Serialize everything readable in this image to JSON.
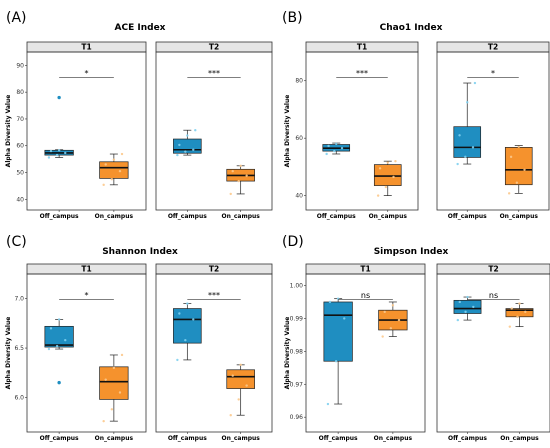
{
  "colors": {
    "off_campus": "#1f8ec1",
    "on_campus": "#f5922d",
    "strip_bg": "#e6e6e6",
    "frame": "#333333"
  },
  "chart_data": [
    {
      "type": "box",
      "panel_label": "(A)",
      "title": "ACE Index",
      "ylabel": "Alpha Diversity Value",
      "ylim": [
        36,
        95
      ],
      "yticks": [
        40,
        50,
        60,
        70,
        80,
        90
      ],
      "facets": [
        {
          "name": "T1",
          "groups": [
            {
              "name": "Off_campus",
              "q1": 56.5,
              "median": 57.3,
              "q3": 58.3,
              "whisker_low": 55.6,
              "whisker_high": 58.5,
              "outliers": [
                78.0
              ],
              "points": [
                55.6,
                56.5,
                57.3,
                58.0,
                58.3
              ]
            },
            {
              "name": "On_campus",
              "q1": 47.8,
              "median": 51.8,
              "q3": 54.0,
              "whisker_low": 45.4,
              "whisker_high": 56.9,
              "outliers": [],
              "points": [
                45.4,
                47.5,
                50.5,
                53.0,
                54.8,
                56.9
              ]
            }
          ],
          "significance": "*"
        },
        {
          "name": "T2",
          "groups": [
            {
              "name": "Off_campus",
              "q1": 57.2,
              "median": 58.5,
              "q3": 62.5,
              "whisker_low": 56.5,
              "whisker_high": 65.8,
              "outliers": [],
              "points": [
                56.5,
                57.8,
                58.5,
                60.3,
                63.8,
                65.8
              ]
            },
            {
              "name": "On_campus",
              "q1": 46.8,
              "median": 48.9,
              "q3": 51.2,
              "whisker_low": 42.0,
              "whisker_high": 52.5,
              "outliers": [],
              "points": [
                42.0,
                46.8,
                48.8,
                50.5,
                52.5
              ]
            }
          ],
          "significance": "***"
        }
      ]
    },
    {
      "type": "box",
      "panel_label": "(B)",
      "title": "Chao1 Index",
      "ylabel": "Alpha Diversity Value",
      "ylim": [
        35,
        90
      ],
      "yticks": [
        40,
        60,
        80
      ],
      "facets": [
        {
          "name": "T1",
          "groups": [
            {
              "name": "Off_campus",
              "q1": 55.5,
              "median": 56.5,
              "q3": 57.8,
              "whisker_low": 54.5,
              "whisker_high": 58.3,
              "outliers": [],
              "points": [
                54.5,
                55.5,
                56.5,
                57.3,
                58.0
              ]
            },
            {
              "name": "On_campus",
              "q1": 43.5,
              "median": 46.8,
              "q3": 50.8,
              "whisker_low": 40.0,
              "whisker_high": 52.0,
              "outliers": [],
              "points": [
                40.0,
                43.0,
                46.5,
                49.5,
                51.5,
                52.0
              ]
            }
          ],
          "significance": "***"
        },
        {
          "name": "T2",
          "groups": [
            {
              "name": "Off_campus",
              "q1": 53.3,
              "median": 56.8,
              "q3": 64.0,
              "whisker_low": 51.0,
              "whisker_high": 79.2,
              "outliers": [],
              "points": [
                51.0,
                53.5,
                56.8,
                61.0,
                72.5,
                79.2
              ]
            },
            {
              "name": "On_campus",
              "q1": 43.8,
              "median": 49.0,
              "q3": 56.8,
              "whisker_low": 40.8,
              "whisker_high": 57.5,
              "outliers": [],
              "points": [
                40.8,
                44.5,
                49.0,
                53.5,
                57.0
              ]
            }
          ],
          "significance": "*"
        }
      ]
    },
    {
      "type": "box",
      "panel_label": "(C)",
      "title": "Shannon Index",
      "ylabel": "Alpha Diversity Value",
      "ylim": [
        5.65,
        7.25
      ],
      "yticks": [
        6.0,
        6.5,
        7.0
      ],
      "facets": [
        {
          "name": "T1",
          "groups": [
            {
              "name": "Off_campus",
              "q1": 6.51,
              "median": 6.53,
              "q3": 6.72,
              "whisker_low": 6.49,
              "whisker_high": 6.79,
              "outliers": [
                6.15
              ],
              "points": [
                6.49,
                6.52,
                6.58,
                6.7,
                6.79
              ]
            },
            {
              "name": "On_campus",
              "q1": 5.98,
              "median": 6.16,
              "q3": 6.31,
              "whisker_low": 5.76,
              "whisker_high": 6.43,
              "outliers": [],
              "points": [
                5.76,
                5.88,
                6.05,
                6.18,
                6.3,
                6.43
              ]
            }
          ],
          "significance": "*"
        },
        {
          "name": "T2",
          "groups": [
            {
              "name": "Off_campus",
              "q1": 6.55,
              "median": 6.79,
              "q3": 6.9,
              "whisker_low": 6.38,
              "whisker_high": 6.95,
              "outliers": [],
              "points": [
                6.38,
                6.58,
                6.79,
                6.85,
                6.95
              ]
            },
            {
              "name": "On_campus",
              "q1": 6.09,
              "median": 6.21,
              "q3": 6.28,
              "whisker_low": 5.82,
              "whisker_high": 6.33,
              "outliers": [],
              "points": [
                5.82,
                5.98,
                6.12,
                6.22,
                6.33
              ]
            }
          ],
          "significance": "***"
        }
      ]
    },
    {
      "type": "box",
      "panel_label": "(D)",
      "title": "Simpson Index",
      "ylabel": "Alpha Diversity Value",
      "ylim": [
        0.9555,
        1.0035
      ],
      "yticks": [
        0.96,
        0.97,
        0.98,
        0.99,
        1.0
      ],
      "ytick_labels": [
        "0.96",
        "0.97",
        "0.98",
        "0.99",
        "1.00"
      ],
      "facets": [
        {
          "name": "T1",
          "groups": [
            {
              "name": "Off_campus",
              "q1": 0.977,
              "median": 0.991,
              "q3": 0.995,
              "whisker_low": 0.964,
              "whisker_high": 0.996,
              "outliers": [],
              "points": [
                0.964,
                0.977,
                0.99,
                0.995,
                0.996
              ]
            },
            {
              "name": "On_campus",
              "q1": 0.9865,
              "median": 0.9895,
              "q3": 0.9925,
              "whisker_low": 0.9845,
              "whisker_high": 0.995,
              "outliers": [],
              "points": [
                0.9845,
                0.987,
                0.9895,
                0.992,
                0.994
              ]
            }
          ],
          "significance": "ns"
        },
        {
          "name": "T2",
          "groups": [
            {
              "name": "Off_campus",
              "q1": 0.9915,
              "median": 0.993,
              "q3": 0.9955,
              "whisker_low": 0.9895,
              "whisker_high": 0.9965,
              "outliers": [],
              "points": [
                0.9895,
                0.992,
                0.9935,
                0.995,
                0.9965
              ]
            },
            {
              "name": "On_campus",
              "q1": 0.9905,
              "median": 0.9925,
              "q3": 0.993,
              "whisker_low": 0.9875,
              "whisker_high": 0.9945,
              "outliers": [],
              "points": [
                0.9875,
                0.9905,
                0.992,
                0.993,
                0.9945
              ]
            }
          ],
          "significance": "ns"
        }
      ]
    }
  ]
}
